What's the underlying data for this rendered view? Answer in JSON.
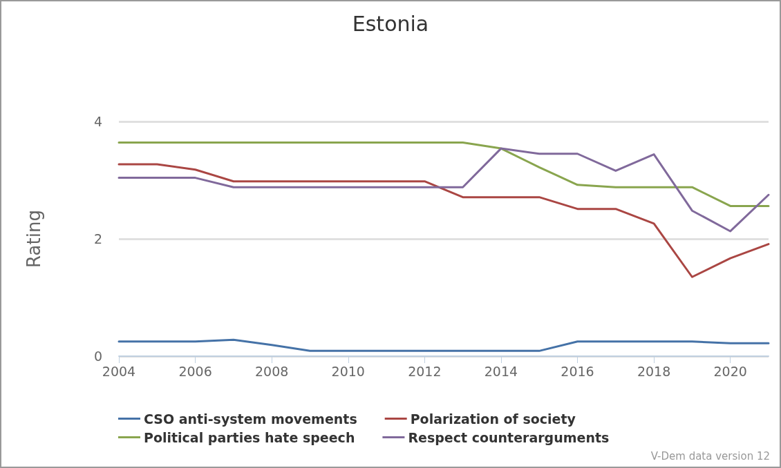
{
  "chart_data": {
    "type": "line",
    "title": "Estonia",
    "ylabel": "Rating",
    "x": [
      2004,
      2005,
      2006,
      2007,
      2008,
      2009,
      2010,
      2011,
      2012,
      2013,
      2014,
      2015,
      2016,
      2017,
      2018,
      2019,
      2020,
      2021
    ],
    "series": [
      {
        "name": "CSO anti-system movements",
        "color": "#4572a7",
        "values": [
          0.25,
          0.25,
          0.25,
          0.28,
          0.19,
          0.09,
          0.09,
          0.09,
          0.09,
          0.09,
          0.09,
          0.09,
          0.25,
          0.25,
          0.25,
          0.25,
          0.22,
          0.22
        ]
      },
      {
        "name": "Polarization of society",
        "color": "#aa4643",
        "values": [
          3.27,
          3.27,
          3.18,
          2.98,
          2.98,
          2.98,
          2.98,
          2.98,
          2.98,
          2.71,
          2.71,
          2.71,
          2.51,
          2.51,
          2.26,
          1.35,
          1.67,
          1.91
        ]
      },
      {
        "name": "Political parties hate speech",
        "color": "#89a54e",
        "values": [
          3.64,
          3.64,
          3.64,
          3.64,
          3.64,
          3.64,
          3.64,
          3.64,
          3.64,
          3.64,
          3.54,
          3.22,
          2.92,
          2.88,
          2.88,
          2.88,
          2.56,
          2.56
        ]
      },
      {
        "name": "Respect counterarguments",
        "color": "#80699b",
        "values": [
          3.04,
          3.04,
          3.04,
          2.88,
          2.88,
          2.88,
          2.88,
          2.88,
          2.88,
          2.88,
          3.54,
          3.45,
          3.45,
          3.16,
          3.44,
          2.48,
          2.13,
          2.75
        ]
      }
    ],
    "xlim": [
      2004,
      2021
    ],
    "xticks": [
      2004,
      2006,
      2008,
      2010,
      2012,
      2014,
      2016,
      2018,
      2020
    ],
    "ylim": [
      0,
      4
    ],
    "yticks": [
      0,
      2,
      4
    ],
    "grid": "y",
    "legend": "bottom",
    "marker": "none",
    "line_style": "solid",
    "annotations": [
      "V-Dem data version 12"
    ]
  }
}
